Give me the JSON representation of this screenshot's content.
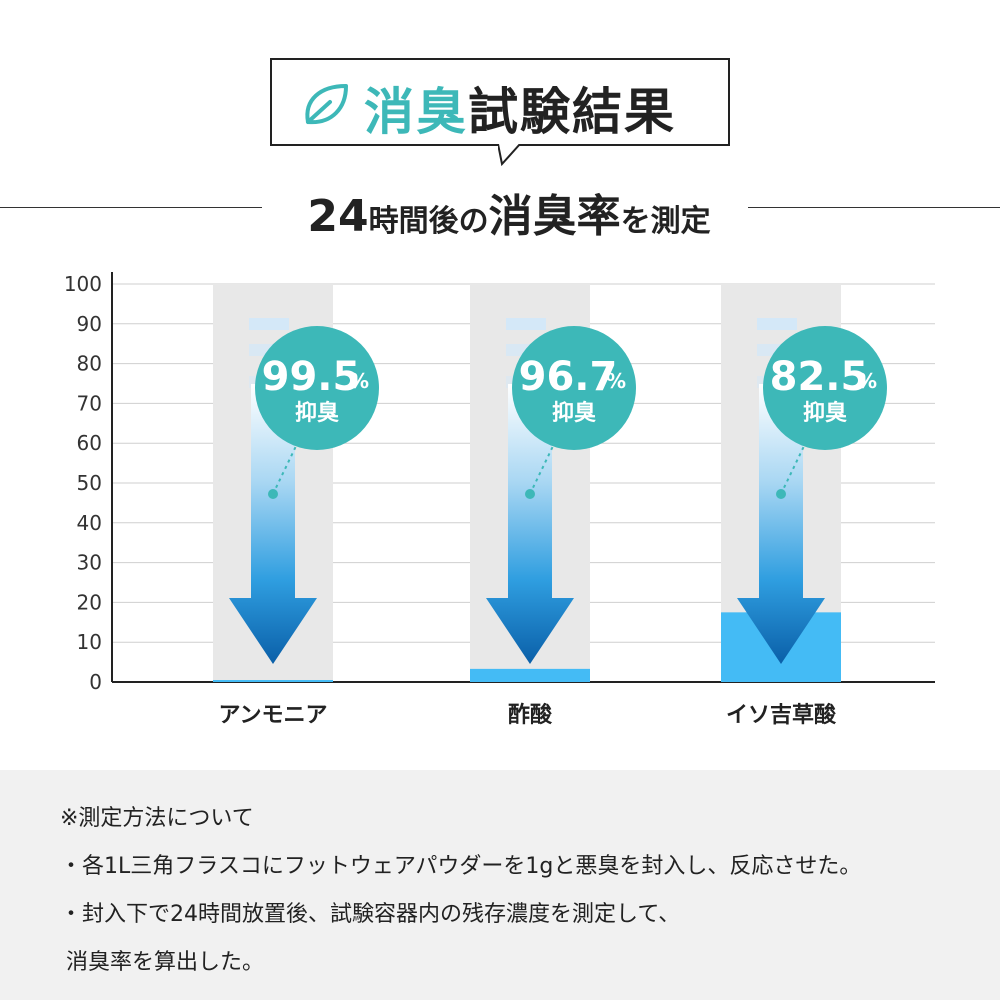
{
  "header": {
    "title_accent": "消臭",
    "title_rest": "試験結果",
    "subtitle_a": "24",
    "subtitle_b": "時間後の",
    "subtitle_c": "消臭率",
    "subtitle_d": "を測定"
  },
  "chart_data": {
    "type": "bar",
    "categories": [
      "アンモニア",
      "酢酸",
      "イソ吉草酸"
    ],
    "values": [
      0.5,
      3.3,
      17.5
    ],
    "reduction": [
      {
        "num": "99.5",
        "sign": "%",
        "label": "抑臭"
      },
      {
        "num": "96.7",
        "sign": "%",
        "label": "抑臭"
      },
      {
        "num": "82.5",
        "sign": "%",
        "label": "抑臭"
      }
    ],
    "y_ticks": [
      "0",
      "10",
      "20",
      "30",
      "40",
      "50",
      "60",
      "70",
      "80",
      "90",
      "100"
    ],
    "ylim": [
      0,
      100
    ],
    "grid": true,
    "colors": {
      "bar": "#44bbf5",
      "bar_bg": "#e8e8e8",
      "badge": "#3db8b8",
      "arrow_top": "#ffffff",
      "arrow_bottom": "#0a6db6"
    }
  },
  "notes": {
    "heading": "※測定方法について",
    "line1": "・各1L三角フラスコにフットウェアパウダーを1gと悪臭を封入し、反応させた。",
    "line2": "・封入下で24時間放置後、試験容器内の残存濃度を測定して、",
    "line3": "消臭率を算出した。"
  }
}
